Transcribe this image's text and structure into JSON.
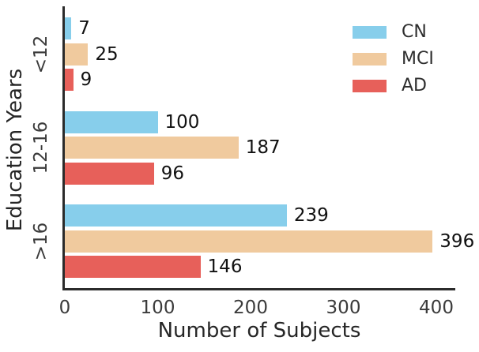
{
  "figure": {
    "background": "#ffffff",
    "text_color": "#262626",
    "spine_color": "#2b2b2b"
  },
  "chart_data": {
    "type": "bar",
    "orientation": "horizontal",
    "title": "",
    "xlabel": "Number of Subjects",
    "ylabel": "Education Years",
    "categories": [
      "<12",
      "12-16",
      ">16"
    ],
    "series": [
      {
        "name": "CN",
        "color": "#87CEEB",
        "values": [
          7,
          100,
          239
        ]
      },
      {
        "name": "MCI",
        "color": "#F0CA9E",
        "values": [
          25,
          187,
          396
        ]
      },
      {
        "name": "AD",
        "color": "#E7605A",
        "values": [
          9,
          96,
          146
        ]
      }
    ],
    "value_labels_shown": true,
    "xticks": [
      0,
      100,
      200,
      300,
      400
    ],
    "xlim": [
      0,
      420
    ],
    "grid": false,
    "legend_position": "upper right"
  }
}
